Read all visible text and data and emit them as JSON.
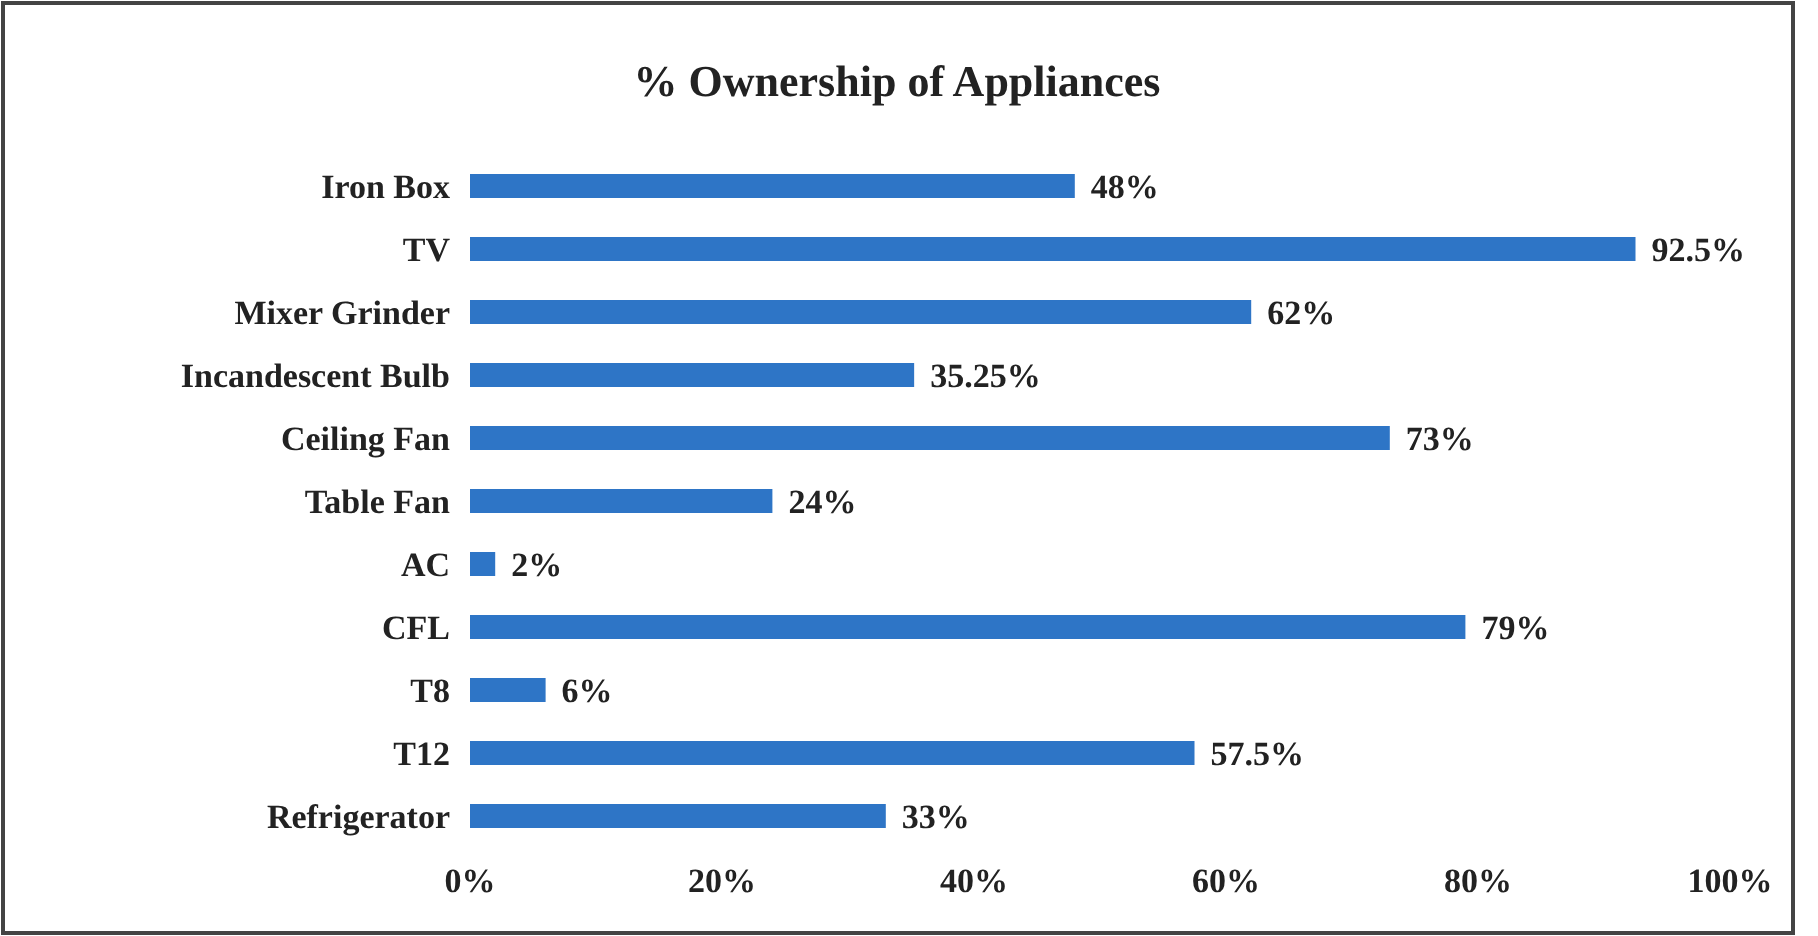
{
  "chart_data": {
    "type": "bar",
    "orientation": "horizontal",
    "title": "% Ownership of Appliances",
    "categories": [
      "Iron Box",
      "TV",
      "Mixer Grinder",
      "Incandescent Bulb",
      "Ceiling Fan",
      "Table Fan",
      "AC",
      "CFL",
      "T8",
      "T12",
      "Refrigerator"
    ],
    "values": [
      48,
      92.5,
      62,
      35.25,
      73,
      24,
      2,
      79,
      6,
      57.5,
      33
    ],
    "value_labels": [
      "48%",
      "92.5%",
      "62%",
      "35.25%",
      "73%",
      "24%",
      "2%",
      "79%",
      "6%",
      "57.5%",
      "33%"
    ],
    "color": "#2e75c6",
    "xlim": [
      0,
      100
    ],
    "xticks": [
      {
        "value": 0,
        "label": "0%"
      },
      {
        "value": 20,
        "label": "20%"
      },
      {
        "value": 40,
        "label": "40%"
      },
      {
        "value": 60,
        "label": "60%"
      },
      {
        "value": 80,
        "label": "80%"
      },
      {
        "value": 100,
        "label": "100%"
      }
    ],
    "grid": false
  }
}
